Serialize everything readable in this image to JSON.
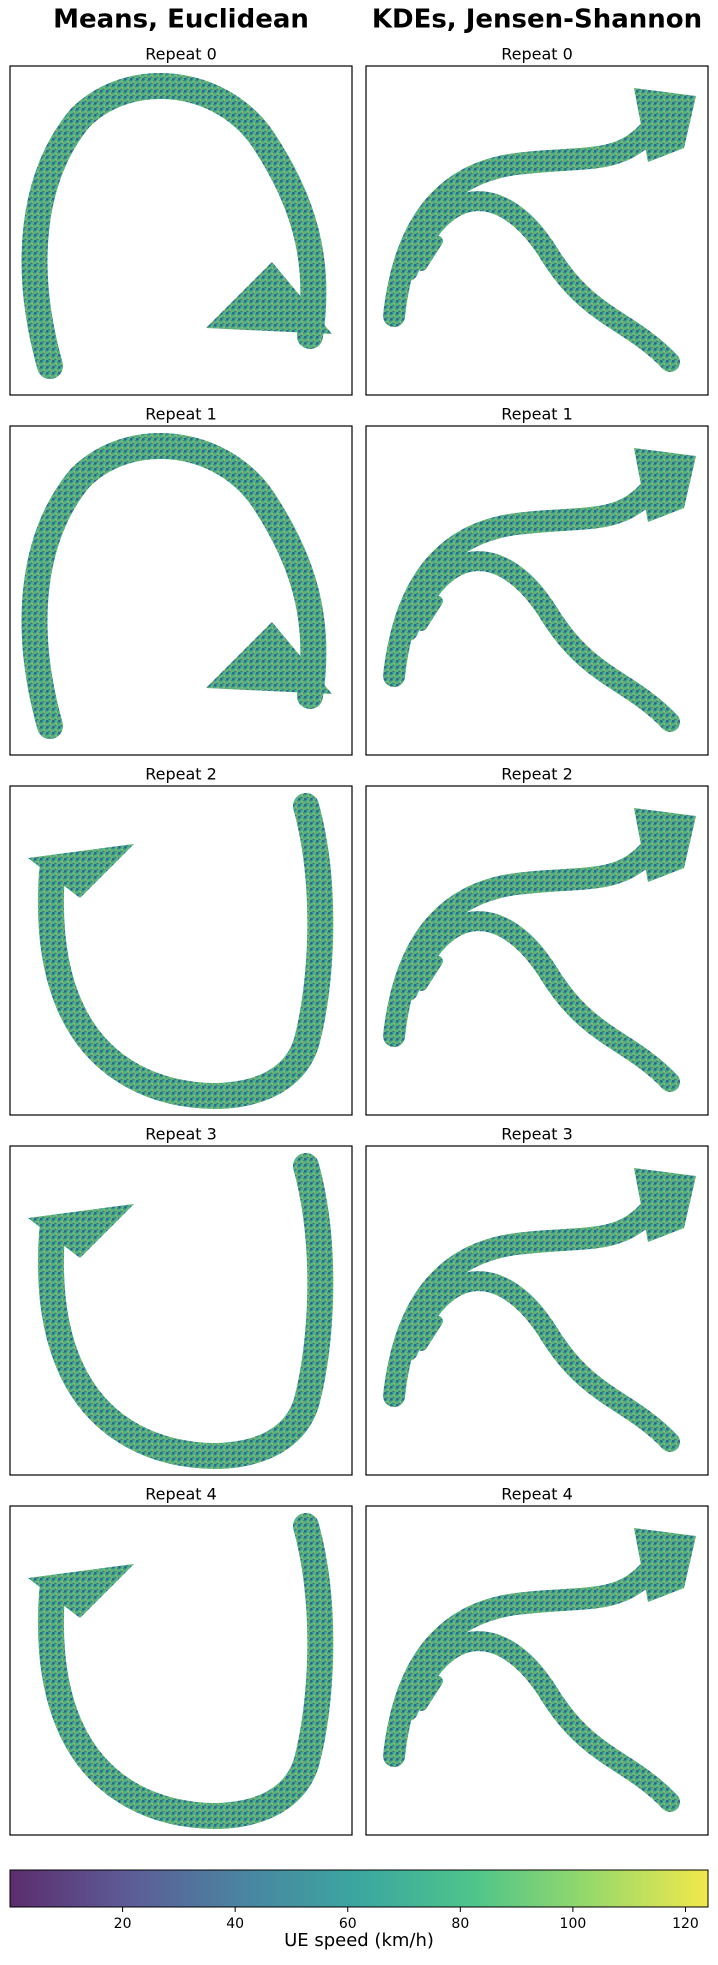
{
  "chart_data": {
    "type": "colorbar",
    "label": "UE speed (km/h)",
    "clim": [
      0,
      124
    ],
    "ticks": [
      20,
      40,
      60,
      80,
      100,
      120
    ],
    "colors": [
      "#5b2d6e",
      "#5d5b96",
      "#4a84a1",
      "#3ba7a0",
      "#4fc58a",
      "#99d96a",
      "#f2e84b"
    ]
  },
  "figure": {
    "column_titles": [
      "Means, Euclidean",
      "KDEs, Jensen-Shannon"
    ],
    "panel_titles": [
      [
        "Repeat 0",
        "Repeat 1",
        "Repeat 2",
        "Repeat 3",
        "Repeat 4"
      ],
      [
        "Repeat 0",
        "Repeat 1",
        "Repeat 2",
        "Repeat 3",
        "Repeat 4"
      ]
    ]
  }
}
